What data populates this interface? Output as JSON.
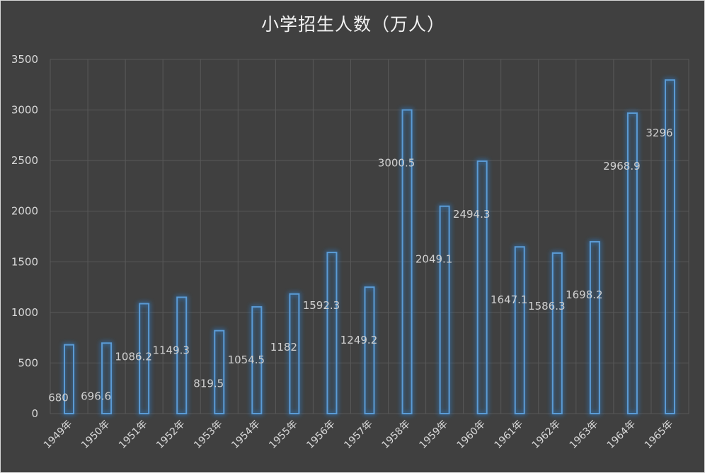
{
  "chart_data": {
    "type": "bar",
    "title": "小学招生人数（万人）",
    "xlabel": "",
    "ylabel": "",
    "ylim": [
      0,
      3500
    ],
    "yticks": [
      0,
      500,
      1000,
      1500,
      2000,
      2500,
      3000,
      3500
    ],
    "grid": true,
    "categories": [
      "1949年",
      "1950年",
      "1951年",
      "1952年",
      "1953年",
      "1954年",
      "1955年",
      "1956年",
      "1957年",
      "1958年",
      "1959年",
      "1960年",
      "1961年",
      "1962年",
      "1963年",
      "1964年",
      "1965年"
    ],
    "series": [
      {
        "values": [
          680,
          696.6,
          1086.2,
          1149.3,
          819.5,
          1054.5,
          1182,
          1592.3,
          1249.2,
          3000.5,
          2049.1,
          2494.3,
          1647.1,
          1586.3,
          1698.2,
          2968.9,
          3296
        ],
        "labels": [
          "680",
          "696.6",
          "1086.2",
          "1149.3",
          "819.5",
          "1054.5",
          "1182",
          "1592.3",
          "1249.2",
          "3000.5",
          "2049.1",
          "2494.3",
          "1647.1",
          "1586.3",
          "1698.2",
          "2968.9",
          "3296"
        ]
      }
    ],
    "colors": {
      "background": "#404040",
      "bar_outline": "#5b9bd5",
      "bar_glow": "#2e75b6",
      "grid": "#595959",
      "text": "#d9d9d9"
    }
  }
}
